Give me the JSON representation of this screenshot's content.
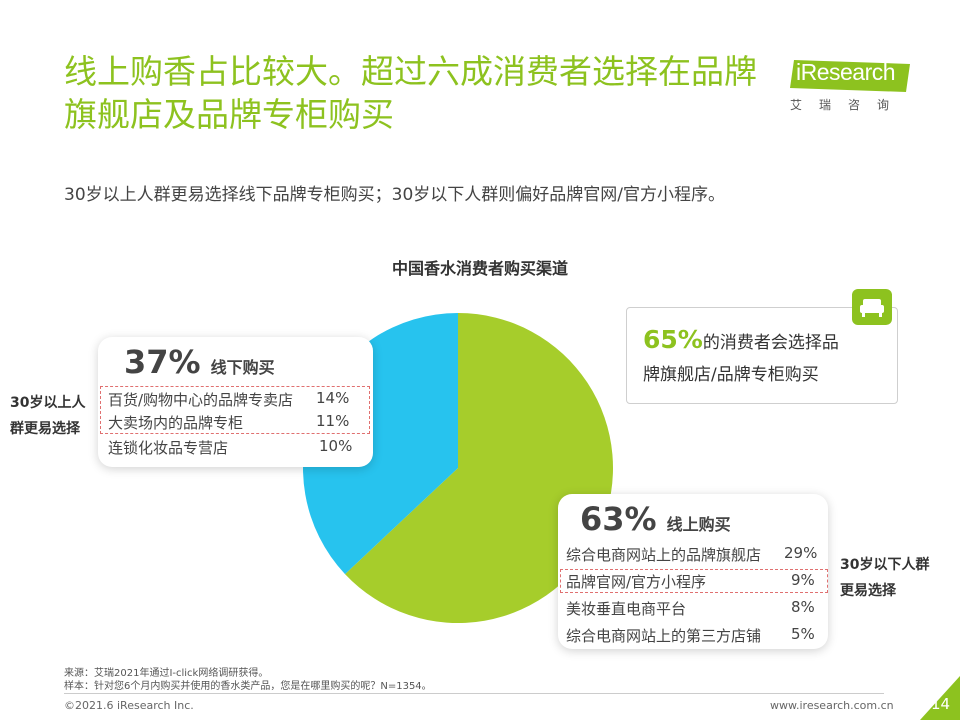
{
  "title": "线上购香占比较大。超过六成消费者选择在品牌旗舰店及品牌专柜购买",
  "logo": {
    "brand": "iResearch",
    "sub": "艾瑞咨询"
  },
  "subtitle": "30岁以上人群更易选择线下品牌专柜购买；30岁以下人群则偏好品牌官网/官方小程序。",
  "chart_data": {
    "type": "pie",
    "title": "中国香水消费者购买渠道",
    "slices": [
      {
        "name": "线上购买",
        "value": 63,
        "color": "#a6cd2b"
      },
      {
        "name": "线下购买",
        "value": 37,
        "color": "#27c3ee"
      }
    ],
    "offline": {
      "pct": "37%",
      "label": "线下购买",
      "items": [
        {
          "name": "百货/购物中心的品牌专卖店",
          "value": "14%"
        },
        {
          "name": "大卖场内的品牌专柜",
          "value": "11%"
        },
        {
          "name": "连锁化妆品专营店",
          "value": "10%"
        }
      ]
    },
    "online": {
      "pct": "63%",
      "label": "线上购买",
      "items": [
        {
          "name": "综合电商网站上的品牌旗舰店",
          "value": "29%"
        },
        {
          "name": "品牌官网/官方小程序",
          "value": "9%"
        },
        {
          "name": "美妆垂直电商平台",
          "value": "8%"
        },
        {
          "name": "综合电商网站上的第三方店铺",
          "value": "5%"
        }
      ]
    }
  },
  "left_note": {
    "line1": "30岁以上人",
    "line2": "群更易选择"
  },
  "right_note": {
    "line1": "30岁以下人群",
    "line2": "更易选择"
  },
  "callout": {
    "pct": "65%",
    "text1": "的消费者会选择品",
    "text2": "牌旗舰店/品牌专柜购买"
  },
  "footnotes": {
    "source": "来源：艾瑞2021年通过I-click网络调研获得。",
    "sample": "样本：针对您6个月内购买并使用的香水类产品，您是在哪里购买的呢？N=1354。"
  },
  "footer": {
    "copyright": "©2021.6 iResearch Inc.",
    "url": "www.iresearch.com.cn",
    "page": "14"
  }
}
